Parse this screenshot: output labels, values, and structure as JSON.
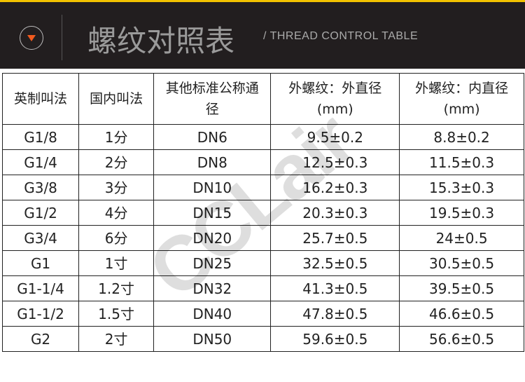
{
  "header": {
    "title": "螺纹对照表",
    "subtitle": "/ THREAD CONTROL TABLE",
    "icon": "chevron-down-circle-icon",
    "accent": "#f25a1e",
    "top_stripe": "#f2c200"
  },
  "table": {
    "headers": [
      "英制叫法",
      "国内叫法",
      "其他标准公称通径",
      "外螺纹：外直径(mm)",
      "外螺纹：内直径(mm)"
    ],
    "header_lines": [
      [
        "英制叫法"
      ],
      [
        "国内叫法"
      ],
      [
        "其他标准公称通",
        "径"
      ],
      [
        "外螺纹：外直径",
        "(mm)"
      ],
      [
        "外螺纹：内直径",
        "(mm)"
      ]
    ],
    "rows": [
      [
        "G1/8",
        "1分",
        "DN6",
        "9.5±0.2",
        "8.8±0.2"
      ],
      [
        "G1/4",
        "2分",
        "DN8",
        "12.5±0.3",
        "11.5±0.3"
      ],
      [
        "G3/8",
        "3分",
        "DN10",
        "16.2±0.3",
        "15.3±0.3"
      ],
      [
        "G1/2",
        "4分",
        "DN15",
        "20.3±0.3",
        "19.5±0.3"
      ],
      [
        "G3/4",
        "6分",
        "DN20",
        "25.7±0.5",
        "24±0.5"
      ],
      [
        "G1",
        "1寸",
        "DN25",
        "32.5±0.5",
        "30.5±0.5"
      ],
      [
        "G1-1/4",
        "1.2寸",
        "DN32",
        "41.3±0.5",
        "39.5±0.5"
      ],
      [
        "G1-1/2",
        "1.5寸",
        "DN40",
        "47.8±0.5",
        "46.6±0.5"
      ],
      [
        "G2",
        "2寸",
        "DN50",
        "59.6±0.5",
        "56.6±0.5"
      ]
    ]
  },
  "watermark": "CCLair"
}
